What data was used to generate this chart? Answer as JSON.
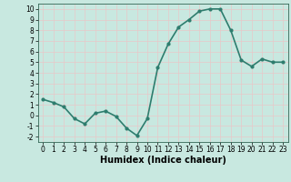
{
  "x": [
    0,
    1,
    2,
    3,
    4,
    5,
    6,
    7,
    8,
    9,
    10,
    11,
    12,
    13,
    14,
    15,
    16,
    17,
    18,
    19,
    20,
    21,
    22,
    23
  ],
  "y": [
    1.5,
    1.2,
    0.8,
    -0.3,
    -0.8,
    0.2,
    0.4,
    -0.1,
    -1.2,
    -1.9,
    -0.3,
    4.5,
    6.7,
    8.3,
    9.0,
    9.8,
    10.0,
    10.0,
    8.0,
    5.2,
    4.6,
    5.3,
    5.0,
    5.0
  ],
  "line_color": "#2e7d6e",
  "marker": "o",
  "marker_size": 2.0,
  "linewidth": 1.2,
  "xlabel": "Humidex (Indice chaleur)",
  "xlim": [
    -0.5,
    23.5
  ],
  "ylim": [
    -2.5,
    10.5
  ],
  "yticks": [
    -2,
    -1,
    0,
    1,
    2,
    3,
    4,
    5,
    6,
    7,
    8,
    9,
    10
  ],
  "xticks": [
    0,
    1,
    2,
    3,
    4,
    5,
    6,
    7,
    8,
    9,
    10,
    11,
    12,
    13,
    14,
    15,
    16,
    17,
    18,
    19,
    20,
    21,
    22,
    23
  ],
  "bg_color": "#c8e8e0",
  "grid_color": "#e8c8c8",
  "tick_fontsize": 5.5,
  "xlabel_fontsize": 7.0,
  "xlabel_fontweight": "bold"
}
